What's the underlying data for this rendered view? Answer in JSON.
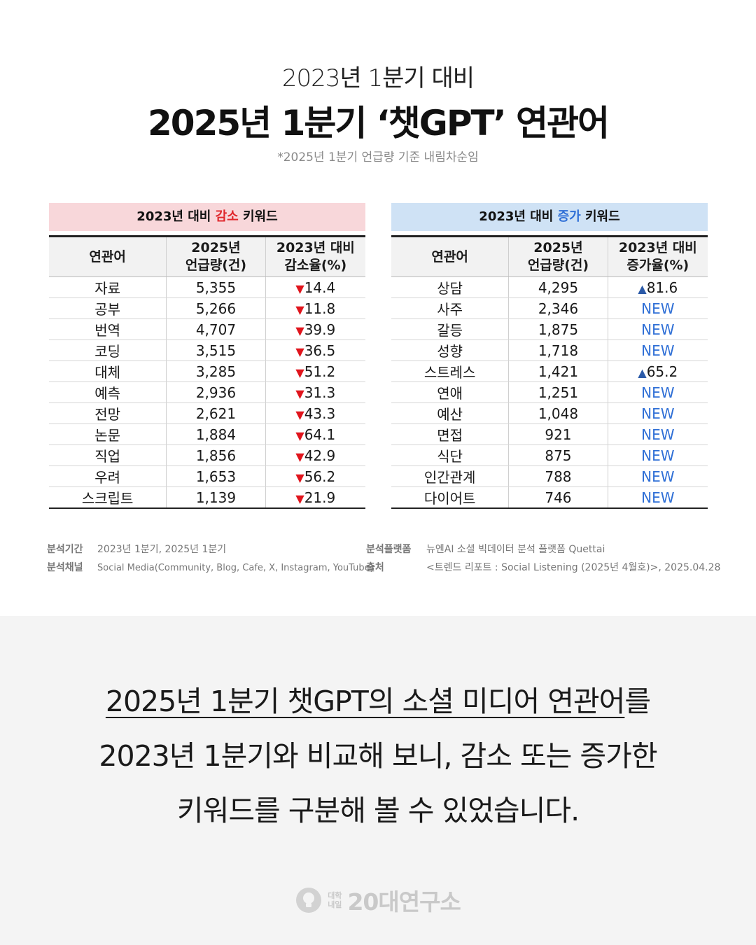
{
  "header": {
    "subtitle": "2023년 1분기 대비",
    "title": "2025년 1분기 ‘챗GPT’ 연관어",
    "note": "*2025년 1분기 언급량 기준 내림차순임"
  },
  "decrease": {
    "head_prefix": "2023년 대비 ",
    "head_accent": "감소",
    "head_suffix": " 키워드",
    "columns": [
      "연관어",
      "2025년\n언급량(건)",
      "2023년 대비\n감소율(%)"
    ],
    "col_a_line1": "2025년",
    "col_a_line2": "언급량(건)",
    "col_b_line1": "2023년 대비",
    "col_b_line2": "감소율(%)",
    "rows": [
      {
        "word": "자료",
        "count": "5,355",
        "rate": "14.4"
      },
      {
        "word": "공부",
        "count": "5,266",
        "rate": "11.8"
      },
      {
        "word": "번역",
        "count": "4,707",
        "rate": "39.9"
      },
      {
        "word": "코딩",
        "count": "3,515",
        "rate": "36.5"
      },
      {
        "word": "대체",
        "count": "3,285",
        "rate": "51.2"
      },
      {
        "word": "예측",
        "count": "2,936",
        "rate": "31.3"
      },
      {
        "word": "전망",
        "count": "2,621",
        "rate": "43.3"
      },
      {
        "word": "논문",
        "count": "1,884",
        "rate": "64.1"
      },
      {
        "word": "직업",
        "count": "1,856",
        "rate": "42.9"
      },
      {
        "word": "우려",
        "count": "1,653",
        "rate": "56.2"
      },
      {
        "word": "스크립트",
        "count": "1,139",
        "rate": "21.9"
      }
    ]
  },
  "increase": {
    "head_prefix": "2023년 대비 ",
    "head_accent": "증가",
    "head_suffix": " 키워드",
    "col_word": "연관어",
    "col_a_line1": "2025년",
    "col_a_line2": "언급량(건)",
    "col_b_line1": "2023년 대비",
    "col_b_line2": "증가율(%)",
    "rows": [
      {
        "word": "상담",
        "count": "4,295",
        "rate": "81.6",
        "is_new": false
      },
      {
        "word": "사주",
        "count": "2,346",
        "rate": "NEW",
        "is_new": true
      },
      {
        "word": "갈등",
        "count": "1,875",
        "rate": "NEW",
        "is_new": true
      },
      {
        "word": "성향",
        "count": "1,718",
        "rate": "NEW",
        "is_new": true
      },
      {
        "word": "스트레스",
        "count": "1,421",
        "rate": "65.2",
        "is_new": false
      },
      {
        "word": "연애",
        "count": "1,251",
        "rate": "NEW",
        "is_new": true
      },
      {
        "word": "예산",
        "count": "1,048",
        "rate": "NEW",
        "is_new": true
      },
      {
        "word": "면접",
        "count": "921",
        "rate": "NEW",
        "is_new": true
      },
      {
        "word": "식단",
        "count": "875",
        "rate": "NEW",
        "is_new": true
      },
      {
        "word": "인간관계",
        "count": "788",
        "rate": "NEW",
        "is_new": true
      },
      {
        "word": "다이어트",
        "count": "746",
        "rate": "NEW",
        "is_new": true
      }
    ]
  },
  "meta": {
    "period_label": "분석기간",
    "period_value": "2023년 1분기, 2025년 1분기",
    "channel_label": "분석채널",
    "channel_value": "Social Media(Community, Blog, Cafe, X, Instagram, YouTube)",
    "platform_label": "분석플랫폼",
    "platform_value": "뉴엔AI 소셜 빅데이터 분석 플랫폼 Quettai",
    "source_label": "출처",
    "source_value": "<트렌드 리포트 : Social Listening (2025년 4월호)>, 2025.04.28"
  },
  "summary": {
    "line1_underlined": "2025년 1분기 챗GPT의 소셜 미디어 연관어",
    "line1_rest": "를",
    "line2": "2023년 1분기와 비교해 보니, 감소 또는 증가한",
    "line3": "키워드를 구분해 볼 수 있었습니다."
  },
  "logo": {
    "small_line1": "대학",
    "small_line2": "내일",
    "text": "20대연구소",
    "icon": "bulb-icon"
  },
  "colors": {
    "down": "#e0141c",
    "up": "#2b5aa8",
    "new": "#2f6fd6",
    "decrease_head_bg": "#f8d7da",
    "increase_head_bg": "#cfe2f5"
  }
}
